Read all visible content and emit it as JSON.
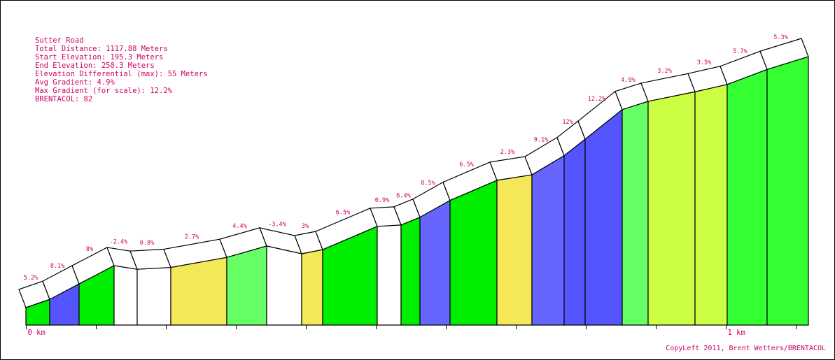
{
  "info": {
    "road": "Sutter Road",
    "total_distance": "Total Distance: 1117.88 Meters",
    "start_elevation": "Start Elevation: 195.3 Meters",
    "end_elevation": "End Elevation: 250.3 Meters",
    "elevation_differential": "Elevation Differential (max): 55 Meters",
    "avg_gradient": "Avg Gradient: 4.9%",
    "max_gradient": "Max Gradient (for scale): 12.2%",
    "brentacol": "BRENTACOL: 82"
  },
  "copyleft": "CopyLeft 2011, Brent Wetters/BRENTACOL",
  "chart_data": {
    "type": "area",
    "title": "Sutter Road",
    "x_unit": "km",
    "x_ticks": [
      {
        "x": 0,
        "label": "0 km"
      },
      {
        "x": 0.1,
        "label": ""
      },
      {
        "x": 0.2,
        "label": ""
      },
      {
        "x": 0.3,
        "label": ""
      },
      {
        "x": 0.4,
        "label": ""
      },
      {
        "x": 0.5,
        "label": ""
      },
      {
        "x": 0.6,
        "label": ""
      },
      {
        "x": 0.7,
        "label": ""
      },
      {
        "x": 0.8,
        "label": ""
      },
      {
        "x": 0.9,
        "label": ""
      },
      {
        "x": 1.0,
        "label": "1 km"
      },
      {
        "x": 1.1,
        "label": ""
      }
    ],
    "ylim": [
      195.3,
      250.3
    ],
    "segments": [
      {
        "x0": 0,
        "x1": 0.034,
        "gradient": "5.2%",
        "color": "#00ee00"
      },
      {
        "x0": 0.034,
        "x1": 0.076,
        "gradient": "8.1%",
        "color": "#5555ff"
      },
      {
        "x0": 0.076,
        "x1": 0.126,
        "gradient": "8%",
        "color": "#00ee00"
      },
      {
        "x0": 0.126,
        "x1": 0.159,
        "gradient": "-2.4%",
        "color": "#ffffff"
      },
      {
        "x0": 0.159,
        "x1": 0.207,
        "gradient": "0.8%",
        "color": "#ffffff"
      },
      {
        "x0": 0.207,
        "x1": 0.287,
        "gradient": "2.7%",
        "color": "#f5e858"
      },
      {
        "x0": 0.287,
        "x1": 0.344,
        "gradient": "4.4%",
        "color": "#66ff66"
      },
      {
        "x0": 0.344,
        "x1": 0.394,
        "gradient": "-3.4%",
        "color": "#ffffff"
      },
      {
        "x0": 0.394,
        "x1": 0.424,
        "gradient": "3%",
        "color": "#f5e858"
      },
      {
        "x0": 0.424,
        "x1": 0.502,
        "gradient": "6.5%",
        "color": "#00ee00"
      },
      {
        "x0": 0.502,
        "x1": 0.536,
        "gradient": "0.9%",
        "color": "#ffffff"
      },
      {
        "x0": 0.536,
        "x1": 0.563,
        "gradient": "6.4%",
        "color": "#00ee00"
      },
      {
        "x0": 0.563,
        "x1": 0.606,
        "gradient": "8.5%",
        "color": "#6666ff"
      },
      {
        "x0": 0.606,
        "x1": 0.673,
        "gradient": "6.5%",
        "color": "#00ee00"
      },
      {
        "x0": 0.673,
        "x1": 0.723,
        "gradient": "2.3%",
        "color": "#f5e858"
      },
      {
        "x0": 0.723,
        "x1": 0.769,
        "gradient": "9.1%",
        "color": "#6666ff"
      },
      {
        "x0": 0.769,
        "x1": 0.799,
        "gradient": "12%",
        "color": "#5555ff"
      },
      {
        "x0": 0.799,
        "x1": 0.852,
        "gradient": "12.2%",
        "color": "#5555ff"
      },
      {
        "x0": 0.852,
        "x1": 0.889,
        "gradient": "4.9%",
        "color": "#66ff66"
      },
      {
        "x0": 0.889,
        "x1": 0.956,
        "gradient": "3.2%",
        "color": "#ccff44"
      },
      {
        "x0": 0.956,
        "x1": 1.002,
        "gradient": "3.5%",
        "color": "#ccff44"
      },
      {
        "x0": 1.002,
        "x1": 1.059,
        "gradient": "5.7%",
        "color": "#33ff33"
      },
      {
        "x0": 1.059,
        "x1": 1.118,
        "gradient": "5.3%",
        "color": "#33ff33"
      }
    ],
    "elevations": [
      195.3,
      197.1,
      200.5,
      204.5,
      203.7,
      204.1,
      206.3,
      208.8,
      207.1,
      208.0,
      213.1,
      213.4,
      215.1,
      218.8,
      223.2,
      224.4,
      228.6,
      232.2,
      238.7,
      240.5,
      242.6,
      244.2,
      247.5,
      250.3
    ]
  }
}
